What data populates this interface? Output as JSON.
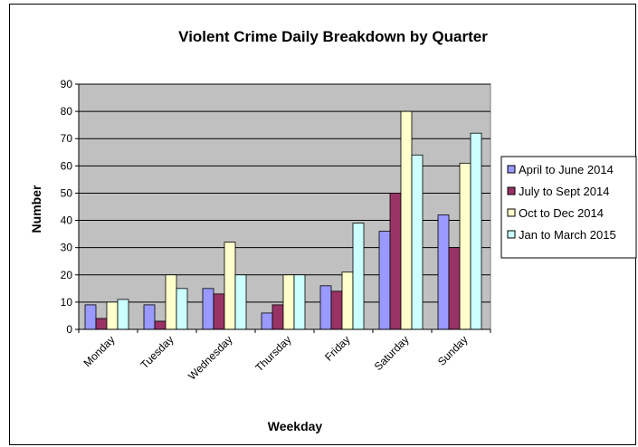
{
  "chart_data": {
    "type": "bar",
    "title": "Violent Crime Daily Breakdown by Quarter",
    "xlabel": "Weekday",
    "ylabel": "Number",
    "ylim": [
      0,
      90
    ],
    "yticks": [
      0,
      10,
      20,
      30,
      40,
      50,
      60,
      70,
      80,
      90
    ],
    "grid": true,
    "plot_background": "#c0c0c0",
    "legend_position": "right",
    "categories": [
      "Monday",
      "Tuesday",
      "Wednesday",
      "Thursday",
      "Friday",
      "Saturday",
      "Sunday"
    ],
    "series": [
      {
        "name": "April to June 2014",
        "color": "#9999ff",
        "values": [
          9,
          9,
          15,
          6,
          16,
          36,
          42
        ]
      },
      {
        "name": "July to Sept 2014",
        "color": "#993366",
        "values": [
          4,
          3,
          13,
          9,
          14,
          50,
          30
        ]
      },
      {
        "name": "Oct to Dec 2014",
        "color": "#ffffcc",
        "values": [
          10,
          20,
          32,
          20,
          21,
          80,
          61
        ]
      },
      {
        "name": "Jan to March 2015",
        "color": "#ccffff",
        "values": [
          11,
          15,
          20,
          20,
          39,
          64,
          72
        ]
      }
    ]
  }
}
